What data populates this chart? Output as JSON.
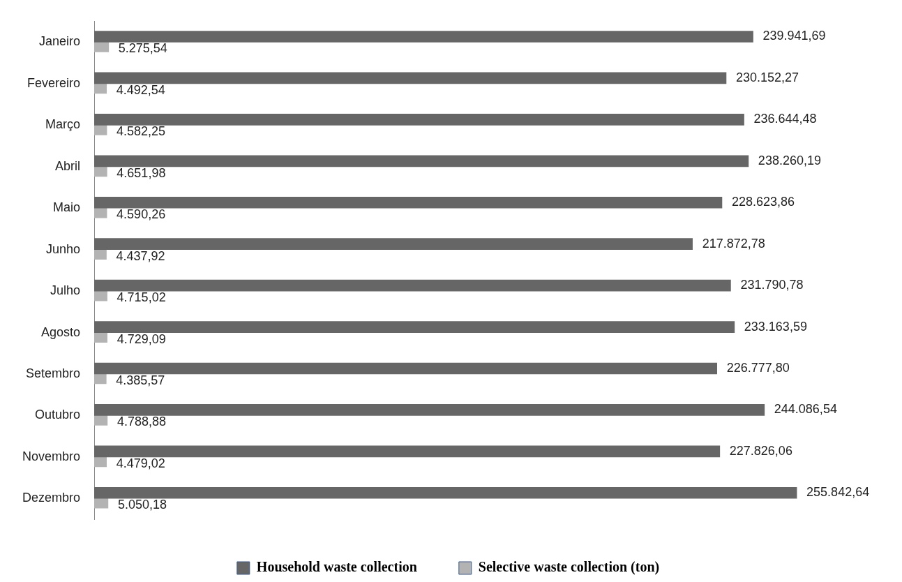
{
  "chart_data": {
    "type": "bar",
    "orientation": "horizontal",
    "categories": [
      "Janeiro",
      "Fevereiro",
      "Março",
      "Abril",
      "Maio",
      "Junho",
      "Julho",
      "Agosto",
      "Setembro",
      "Outubro",
      "Novembro",
      "Dezembro"
    ],
    "series": [
      {
        "name": "Household waste collection",
        "color": "#666666",
        "values": [
          239941.69,
          230152.27,
          236644.48,
          238260.19,
          228623.86,
          217872.78,
          231790.78,
          233163.59,
          226777.8,
          244086.54,
          227826.06,
          255842.64
        ],
        "value_labels": [
          "239.941,69",
          "230.152,27",
          "236.644,48",
          "238.260,19",
          "228.623,86",
          "217.872,78",
          "231.790,78",
          "233.163,59",
          "226.777,80",
          "244.086,54",
          "227.826,06",
          "255.842,64"
        ]
      },
      {
        "name": "Selective waste collection (ton)",
        "color": "#b3b3b3",
        "values": [
          5275.54,
          4492.54,
          4582.25,
          4651.98,
          4590.26,
          4437.92,
          4715.02,
          4729.09,
          4385.57,
          4788.88,
          4479.02,
          5050.18
        ],
        "value_labels": [
          "5.275,54",
          "4.492,54",
          "4.582,25",
          "4.651,98",
          "4.590,26",
          "4.437,92",
          "4.715,02",
          "4.729,09",
          "4.385,57",
          "4.788,88",
          "4.479,02",
          "5.050,18"
        ]
      }
    ],
    "grid": false,
    "legend": "bottom",
    "tick_labels": "y"
  }
}
